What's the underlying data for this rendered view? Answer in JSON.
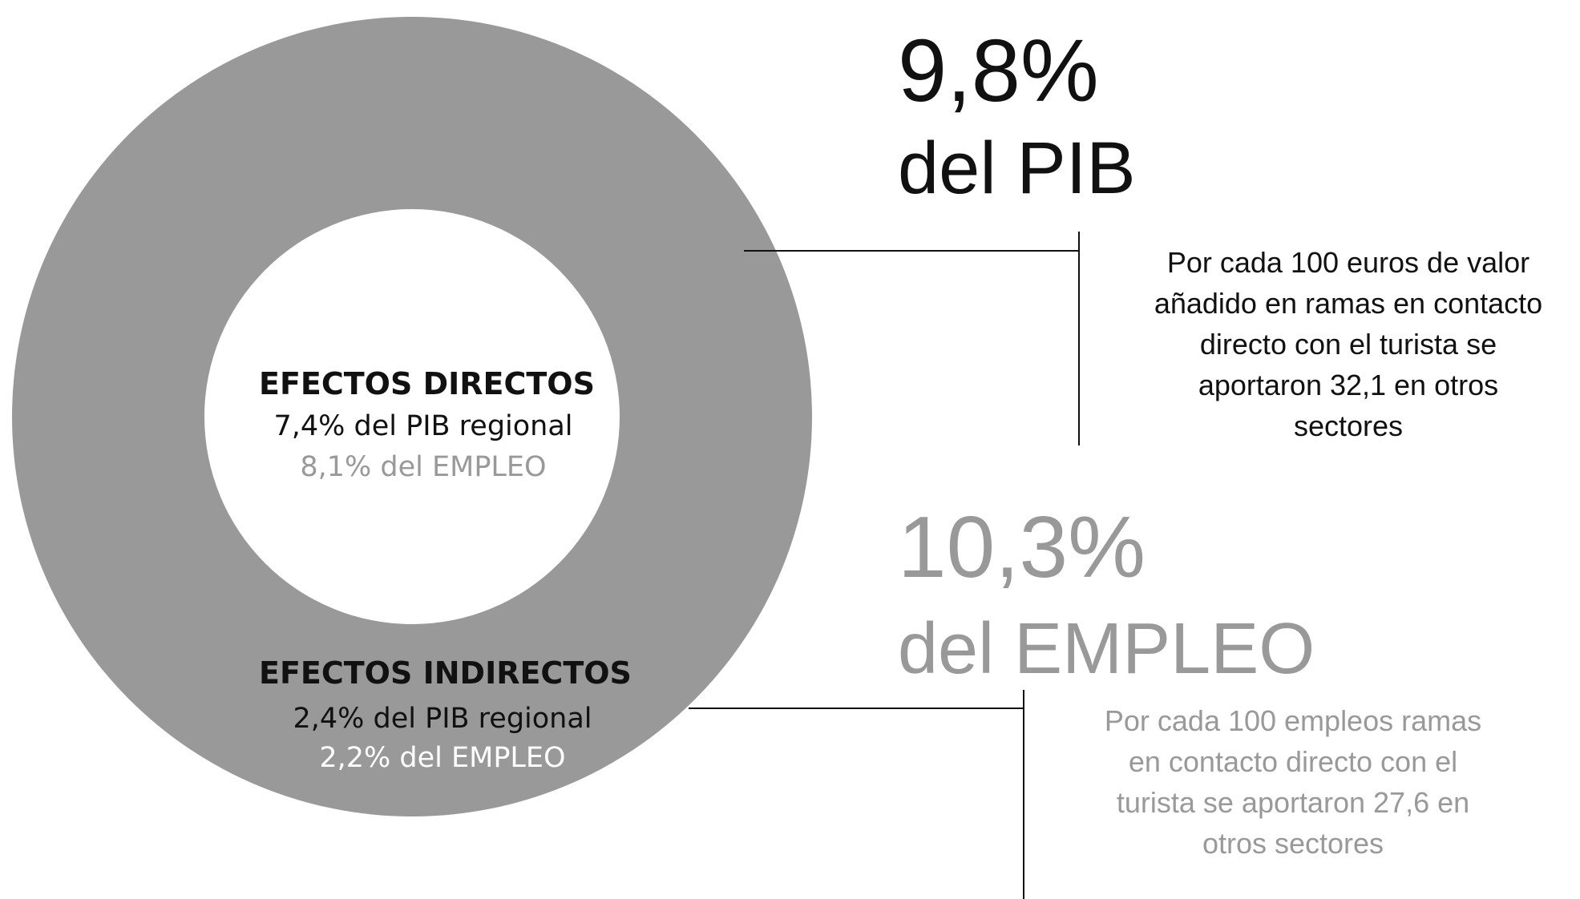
{
  "direct": {
    "title": "EFECTOS DIRECTOS",
    "gdp": "7,4% del PIB regional",
    "employment": "8,1% del EMPLEO"
  },
  "indirect": {
    "title": "EFECTOS INDIRECTOS",
    "gdp": "2,4% del PIB regional",
    "employment": "2,2% del EMPLEO"
  },
  "gdp_total": {
    "value": "9,8%",
    "label": "del PIB",
    "note": [
      "Por cada 100 euros de valor",
      "añadido en ramas en contacto",
      "directo con el turista se",
      "aportaron 32,1 en otros",
      "sectores"
    ]
  },
  "employment_total": {
    "value": "10,3%",
    "label": "del EMPLEO",
    "note": [
      "Por cada 100 empleos ramas",
      "en contacto directo con el",
      "turista se aportaron 27,6 en",
      "otros sectores"
    ]
  }
}
